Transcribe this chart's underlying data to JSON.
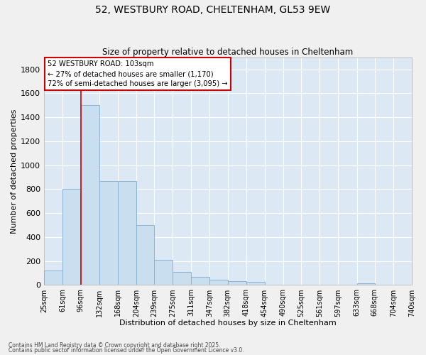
{
  "title": "52, WESTBURY ROAD, CHELTENHAM, GL53 9EW",
  "subtitle": "Size of property relative to detached houses in Cheltenham",
  "xlabel": "Distribution of detached houses by size in Cheltenham",
  "ylabel": "Number of detached properties",
  "bar_color": "#c9dff0",
  "bar_edge_color": "#8ab4d4",
  "background_color": "#dce9f5",
  "fig_background_color": "#f0f0f0",
  "grid_color": "#ffffff",
  "property_line_x": 96,
  "property_line_color": "#cc0000",
  "annotation_text": "52 WESTBURY ROAD: 103sqm\n← 27% of detached houses are smaller (1,170)\n72% of semi-detached houses are larger (3,095) →",
  "annotation_box_color": "#ffffff",
  "annotation_box_edge_color": "#cc0000",
  "ylim": [
    0,
    1900
  ],
  "yticks": [
    0,
    200,
    400,
    600,
    800,
    1000,
    1200,
    1400,
    1600,
    1800
  ],
  "bin_edges": [
    25,
    61,
    96,
    132,
    168,
    204,
    239,
    275,
    311,
    347,
    382,
    418,
    454,
    490,
    525,
    561,
    597,
    633,
    668,
    704,
    740
  ],
  "bin_labels": [
    "25sqm",
    "61sqm",
    "96sqm",
    "132sqm",
    "168sqm",
    "204sqm",
    "239sqm",
    "275sqm",
    "311sqm",
    "347sqm",
    "382sqm",
    "418sqm",
    "454sqm",
    "490sqm",
    "525sqm",
    "561sqm",
    "597sqm",
    "633sqm",
    "668sqm",
    "704sqm",
    "740sqm"
  ],
  "bar_heights": [
    120,
    800,
    1500,
    870,
    870,
    500,
    210,
    110,
    70,
    45,
    30,
    25,
    5,
    0,
    0,
    0,
    0,
    15,
    0,
    0
  ],
  "footnote1": "Contains HM Land Registry data © Crown copyright and database right 2025.",
  "footnote2": "Contains public sector information licensed under the Open Government Licence v3.0."
}
